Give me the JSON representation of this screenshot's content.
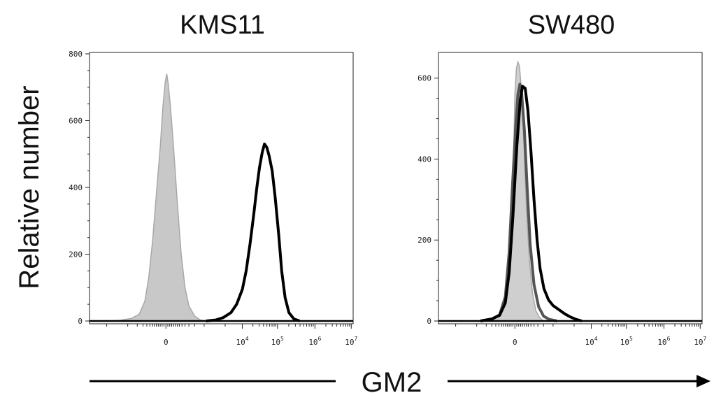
{
  "y_axis_label": "Relative number",
  "x_axis_label": "GM2",
  "chart_data": [
    {
      "type": "area",
      "title": "KMS11",
      "ylim": [
        0,
        800
      ],
      "yticks": [
        0,
        200,
        400,
        600,
        800
      ],
      "xticks": [
        {
          "base": "0",
          "exp": ""
        },
        {
          "base": "10",
          "exp": "4"
        },
        {
          "base": "10",
          "exp": "5"
        },
        {
          "base": "10",
          "exp": "6"
        },
        {
          "base": "10",
          "exp": "7"
        }
      ],
      "series": [
        {
          "style": "filled",
          "color": "#c8c8c8",
          "points": [
            [
              -1.6,
              0
            ],
            [
              -1.2,
              2
            ],
            [
              -0.9,
              8
            ],
            [
              -0.7,
              20
            ],
            [
              -0.55,
              60
            ],
            [
              -0.45,
              130
            ],
            [
              -0.35,
              240
            ],
            [
              -0.25,
              380
            ],
            [
              -0.15,
              520
            ],
            [
              -0.08,
              640
            ],
            [
              -0.02,
              715
            ],
            [
              0.02,
              740
            ],
            [
              0.06,
              710
            ],
            [
              0.12,
              640
            ],
            [
              0.2,
              520
            ],
            [
              0.3,
              350
            ],
            [
              0.4,
              200
            ],
            [
              0.5,
              100
            ],
            [
              0.6,
              45
            ],
            [
              0.75,
              15
            ],
            [
              0.9,
              3
            ],
            [
              1.05,
              0
            ]
          ]
        },
        {
          "style": "outline",
          "color": "#000000",
          "points": [
            [
              1.05,
              0
            ],
            [
              1.3,
              3
            ],
            [
              1.5,
              10
            ],
            [
              1.7,
              25
            ],
            [
              1.85,
              50
            ],
            [
              2.0,
              95
            ],
            [
              2.1,
              150
            ],
            [
              2.2,
              230
            ],
            [
              2.3,
              320
            ],
            [
              2.38,
              400
            ],
            [
              2.45,
              460
            ],
            [
              2.52,
              505
            ],
            [
              2.58,
              530
            ],
            [
              2.64,
              520
            ],
            [
              2.7,
              495
            ],
            [
              2.78,
              450
            ],
            [
              2.86,
              370
            ],
            [
              2.95,
              260
            ],
            [
              3.03,
              150
            ],
            [
              3.12,
              70
            ],
            [
              3.22,
              25
            ],
            [
              3.35,
              6
            ],
            [
              3.5,
              0
            ]
          ]
        }
      ]
    },
    {
      "type": "area",
      "title": "SW480",
      "ylim": [
        0,
        660
      ],
      "yticks": [
        0,
        200,
        400,
        600
      ],
      "xticks": [
        {
          "base": "0",
          "exp": ""
        },
        {
          "base": "10",
          "exp": "4"
        },
        {
          "base": "10",
          "exp": "5"
        },
        {
          "base": "10",
          "exp": "6"
        },
        {
          "base": "10",
          "exp": "7"
        }
      ],
      "series": [
        {
          "style": "filled",
          "color": "#cfcfcf",
          "points": [
            [
              -0.9,
              0
            ],
            [
              -0.6,
              4
            ],
            [
              -0.4,
              12
            ],
            [
              -0.25,
              40
            ],
            [
              -0.15,
              110
            ],
            [
              -0.08,
              250
            ],
            [
              -0.03,
              420
            ],
            [
              0.0,
              560
            ],
            [
              0.04,
              625
            ],
            [
              0.08,
              640
            ],
            [
              0.12,
              630
            ],
            [
              0.18,
              560
            ],
            [
              0.24,
              430
            ],
            [
              0.3,
              280
            ],
            [
              0.38,
              150
            ],
            [
              0.46,
              70
            ],
            [
              0.55,
              25
            ],
            [
              0.65,
              8
            ],
            [
              0.75,
              0
            ]
          ]
        },
        {
          "style": "outline",
          "color": "#555555",
          "points": [
            [
              -0.9,
              0
            ],
            [
              -0.6,
              5
            ],
            [
              -0.4,
              15
            ],
            [
              -0.25,
              60
            ],
            [
              -0.15,
              170
            ],
            [
              -0.06,
              340
            ],
            [
              0.02,
              480
            ],
            [
              0.08,
              560
            ],
            [
              0.13,
              585
            ],
            [
              0.18,
              560
            ],
            [
              0.25,
              470
            ],
            [
              0.32,
              330
            ],
            [
              0.4,
              190
            ],
            [
              0.5,
              90
            ],
            [
              0.62,
              35
            ],
            [
              0.75,
              12
            ],
            [
              0.9,
              4
            ],
            [
              1.1,
              0
            ]
          ]
        },
        {
          "style": "outline",
          "color": "#000000",
          "points": [
            [
              -0.9,
              0
            ],
            [
              -0.6,
              5
            ],
            [
              -0.4,
              14
            ],
            [
              -0.25,
              45
            ],
            [
              -0.15,
              120
            ],
            [
              -0.05,
              260
            ],
            [
              0.05,
              430
            ],
            [
              0.14,
              545
            ],
            [
              0.2,
              580
            ],
            [
              0.27,
              575
            ],
            [
              0.34,
              520
            ],
            [
              0.42,
              420
            ],
            [
              0.5,
              300
            ],
            [
              0.58,
              200
            ],
            [
              0.66,
              130
            ],
            [
              0.76,
              80
            ],
            [
              0.88,
              52
            ],
            [
              1.0,
              38
            ],
            [
              1.15,
              28
            ],
            [
              1.3,
              18
            ],
            [
              1.45,
              10
            ],
            [
              1.6,
              4
            ],
            [
              1.75,
              0
            ]
          ]
        }
      ]
    }
  ]
}
